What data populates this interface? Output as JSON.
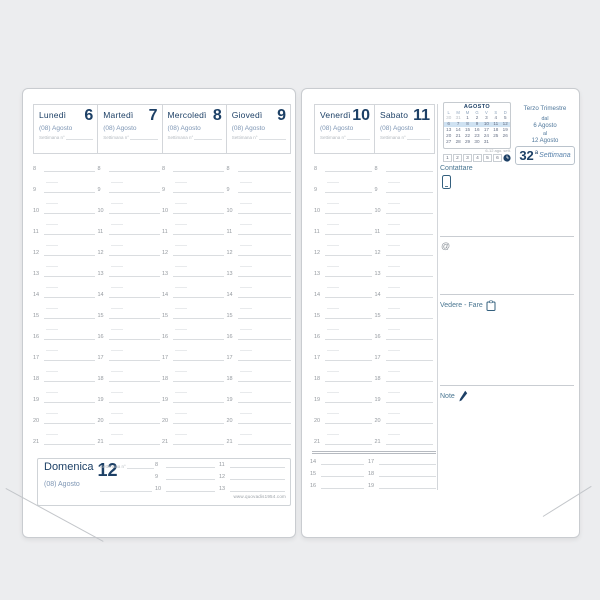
{
  "colors": {
    "navy": "#1d4066",
    "month_blue": "#7e96b4",
    "label_blue": "#4a7691",
    "highlight_blue": "#cfe2f2"
  },
  "hours": [
    "8",
    "9",
    "10",
    "11",
    "12",
    "13",
    "14",
    "15",
    "16",
    "17",
    "18",
    "19",
    "20",
    "21"
  ],
  "left_page": {
    "days": [
      {
        "name": "Lunedì",
        "number": "6",
        "month": "(08) Agosto",
        "week_label": "Settimana n°"
      },
      {
        "name": "Martedì",
        "number": "7",
        "month": "(08) Agosto",
        "week_label": "Settimana n°"
      },
      {
        "name": "Mercoledì",
        "number": "8",
        "month": "(08) Agosto",
        "week_label": "Settimana n°"
      },
      {
        "name": "Giovedì",
        "number": "9",
        "month": "(08) Agosto",
        "week_label": "Settimana n°"
      }
    ],
    "sunday": {
      "name": "Domenica",
      "number": "12",
      "month": "(08) Agosto",
      "week_label": "Settimana n°",
      "hours_am": [
        "8",
        "9",
        "10"
      ],
      "hours_noon": [
        "11",
        "12",
        "13"
      ]
    },
    "website": "www.quovadis1954.com"
  },
  "right_page": {
    "days": [
      {
        "name": "Venerdì",
        "number": "10",
        "month": "(08) Agosto",
        "week_label": "Settimana n°"
      },
      {
        "name": "Sabato",
        "number": "11",
        "month": "(08) Agosto",
        "week_label": "Settimana n°"
      }
    ],
    "sunday_afternoon": {
      "hours_pm": [
        "14",
        "15",
        "16"
      ],
      "hours_eve": [
        "17",
        "18",
        "19"
      ]
    },
    "panel": {
      "calendar": {
        "title": "AGOSTO",
        "day_headers": [
          "L",
          "M",
          "M",
          "G",
          "V",
          "S",
          "D"
        ],
        "weeks": [
          [
            "30",
            "31",
            "1",
            "2",
            "3",
            "4",
            "5"
          ],
          [
            "6",
            "7",
            "8",
            "9",
            "10",
            "11",
            "12"
          ],
          [
            "13",
            "14",
            "15",
            "16",
            "17",
            "18",
            "19"
          ],
          [
            "20",
            "21",
            "22",
            "23",
            "24",
            "25",
            "26"
          ],
          [
            "27",
            "28",
            "29",
            "30",
            "31",
            "",
            ""
          ]
        ],
        "highlighted_week_index": 1,
        "outside_month": [
          "30",
          "31"
        ]
      },
      "strip_note": "6-12 ago. sett.",
      "strip_numbers": [
        "1",
        "2",
        "3",
        "4",
        "5",
        "6"
      ],
      "trimester": {
        "title": "Terzo Trimestre",
        "from_label": "dal",
        "from": "6 Agosto",
        "to_label": "al",
        "to": "12 Agosto"
      },
      "week_badge": {
        "number": "32",
        "ordinal": "a",
        "label": "Settimana"
      },
      "sections": {
        "contact": "Contattare",
        "email": "@",
        "todo": "Vedere - Fare",
        "notes": "Note"
      }
    }
  }
}
